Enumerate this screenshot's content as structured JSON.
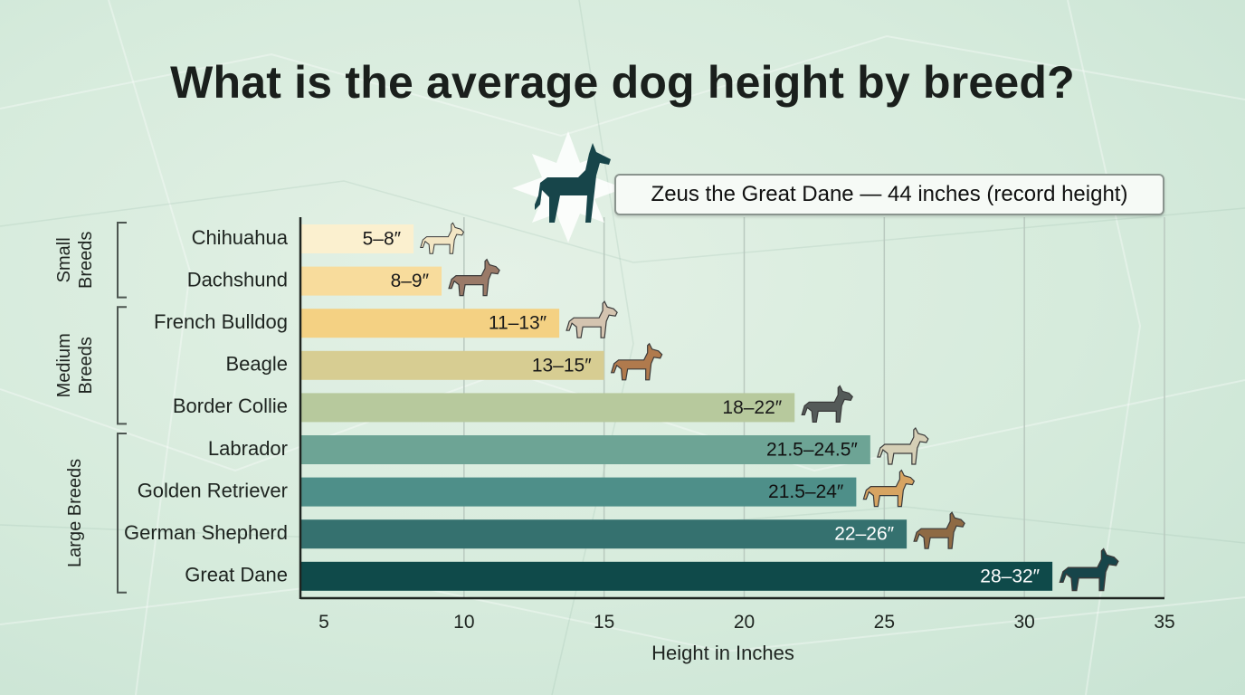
{
  "title": "What is the average dog height by breed?",
  "callout": {
    "text": "Zeus the Great Dane — 44 inches (record height)",
    "icon": "great-dane-silhouette-icon"
  },
  "chart_data": {
    "type": "bar",
    "orientation": "horizontal",
    "title": "What is the average dog height by breed?",
    "xlabel": "Height in Inches",
    "ylabel": "",
    "xlim": [
      5,
      35
    ],
    "xticks": [
      5,
      10,
      15,
      20,
      25,
      30,
      35
    ],
    "grid": "vertical",
    "categories": [
      "Chihuahua",
      "Dachshund",
      "French Bulldog",
      "Beagle",
      "Border Collie",
      "Labrador",
      "Golden Retriever",
      "German Shepherd",
      "Great Dane"
    ],
    "ranges": [
      [
        5,
        8
      ],
      [
        8,
        9
      ],
      [
        11,
        13
      ],
      [
        13,
        15
      ],
      [
        18,
        22
      ],
      [
        21.5,
        24.5
      ],
      [
        21.5,
        24
      ],
      [
        22,
        26
      ],
      [
        28,
        32
      ]
    ],
    "bar_ends": [
      8.2,
      9.2,
      13.4,
      15.0,
      21.8,
      24.5,
      24.0,
      25.8,
      31.0
    ],
    "value_labels": [
      "5–8″",
      "8–9″",
      "11–13″",
      "13–15″",
      "18–22″",
      "21.5–24.5″",
      "21.5–24″",
      "22–26″",
      "28–32″"
    ],
    "colors": [
      "#fbf0cf",
      "#f8dc9c",
      "#f4d183",
      "#d7cd92",
      "#b7c99d",
      "#6da495",
      "#4e8f89",
      "#35716f",
      "#0f4a4a"
    ],
    "label_colors": [
      "#1a1a1a",
      "#1a1a1a",
      "#1a1a1a",
      "#1a1a1a",
      "#1a1a1a",
      "#111111",
      "#111111",
      "#ffffff",
      "#ffffff"
    ],
    "icons": [
      "chihuahua-icon",
      "dachshund-icon",
      "french-bulldog-icon",
      "beagle-icon",
      "border-collie-icon",
      "labrador-icon",
      "golden-retriever-icon",
      "german-shepherd-icon",
      "great-dane-icon"
    ],
    "icon_colors": [
      "#f3e6c4",
      "#9a7a68",
      "#d4c4b0",
      "#b07a4d",
      "#545a58",
      "#d5cfb6",
      "#d7a462",
      "#8e6a44",
      "#17454a"
    ],
    "groups": [
      {
        "label_lines": [
          "Small",
          "Breeds"
        ],
        "first": 0,
        "last": 1
      },
      {
        "label_lines": [
          "Medium",
          "Breeds"
        ],
        "first": 2,
        "last": 4
      },
      {
        "label_lines": [
          "Large Breeds"
        ],
        "first": 5,
        "last": 8
      }
    ]
  }
}
